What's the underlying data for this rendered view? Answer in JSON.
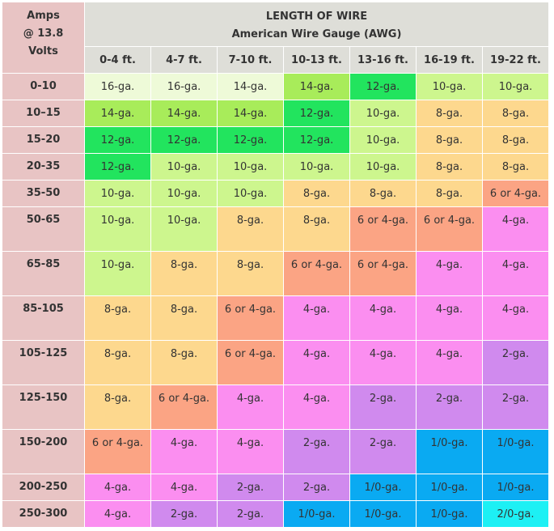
{
  "header": {
    "corner": [
      "Amps",
      "@ 13.8",
      "Volts"
    ],
    "title": "LENGTH OF WIRE",
    "subtitle": "American Wire Gauge (AWG)",
    "lengths": [
      "0-4 ft.",
      "4-7 ft.",
      "7-10 ft.",
      "10-13 ft.",
      "13-16 ft.",
      "16-19 ft.",
      "19-22 ft."
    ]
  },
  "colors": {
    "16-ga.": "#eefad8",
    "14-ga.": "#a8ec5a",
    "14-ga.-light": "#eefad8",
    "12-ga.": "#22e45e",
    "10-ga.": "#cdf68e",
    "8-ga.": "#fdd88e",
    "6 or 4-ga.": "#fba484",
    "4-ga.": "#fb8ef0",
    "2-ga.": "#d08aee",
    "1/0-ga.": "#0aaaf2",
    "2/0-ga.": "#1df0f4",
    "amps_bg": "#e8c4c4",
    "header_bg": "#deded8"
  },
  "rows": [
    {
      "amps": "0-10",
      "cells": [
        "16-ga.",
        "16-ga.",
        "14-ga.",
        "14-ga.",
        "12-ga.",
        "10-ga.",
        "10-ga."
      ]
    },
    {
      "amps": "10–15",
      "cells": [
        "14-ga.",
        "14-ga.",
        "14-ga.",
        "12-ga.",
        "10-ga.",
        "8-ga.",
        "8-ga."
      ]
    },
    {
      "amps": "15-20",
      "cells": [
        "12-ga.",
        "12-ga.",
        "12-ga.",
        "12-ga.",
        "10-ga.",
        "8-ga.",
        "8-ga."
      ]
    },
    {
      "amps": "20-35",
      "cells": [
        "12-ga.",
        "10-ga.",
        "10-ga.",
        "10-ga.",
        "10-ga.",
        "8-ga.",
        "8-ga."
      ]
    },
    {
      "amps": "35-50",
      "cells": [
        "10-ga.",
        "10-ga.",
        "10-ga.",
        "8-ga.",
        "8-ga.",
        "8-ga.",
        "6 or 4-ga."
      ]
    },
    {
      "amps": "50-65",
      "cells": [
        "10-ga.",
        "10-ga.",
        "8-ga.",
        "8-ga.",
        "6 or 4-ga.",
        "6 or 4-ga.",
        "4-ga."
      ]
    },
    {
      "amps": "65-85",
      "cells": [
        "10-ga.",
        "8-ga.",
        "8-ga.",
        "6 or 4-ga.",
        "6 or 4-ga.",
        "4-ga.",
        "4-ga."
      ]
    },
    {
      "amps": "85-105",
      "cells": [
        "8-ga.",
        "8-ga.",
        "6 or 4-ga.",
        "4-ga.",
        "4-ga.",
        "4-ga.",
        "4-ga."
      ]
    },
    {
      "amps": "105-125",
      "cells": [
        "8-ga.",
        "8-ga.",
        "6 or 4-ga.",
        "4-ga.",
        "4-ga.",
        "4-ga.",
        "2-ga."
      ]
    },
    {
      "amps": "125-150",
      "cells": [
        "8-ga.",
        "6 or 4-ga.",
        "4-ga.",
        "4-ga.",
        "2-ga.",
        "2-ga.",
        "2-ga."
      ]
    },
    {
      "amps": "150-200",
      "cells": [
        "6 or 4-ga.",
        "4-ga.",
        "4-ga.",
        "2-ga.",
        "2-ga.",
        "1/0-ga.",
        "1/0-ga."
      ]
    },
    {
      "amps": "200-250",
      "cells": [
        "4-ga.",
        "4-ga.",
        "2-ga.",
        "2-ga.",
        "1/0-ga.",
        "1/0-ga.",
        "1/0-ga."
      ]
    },
    {
      "amps": "250-300",
      "cells": [
        "4-ga.",
        "2-ga.",
        "2-ga.",
        "1/0-ga.",
        "1/0-ga.",
        "1/0-ga.",
        "2/0-ga."
      ]
    }
  ]
}
